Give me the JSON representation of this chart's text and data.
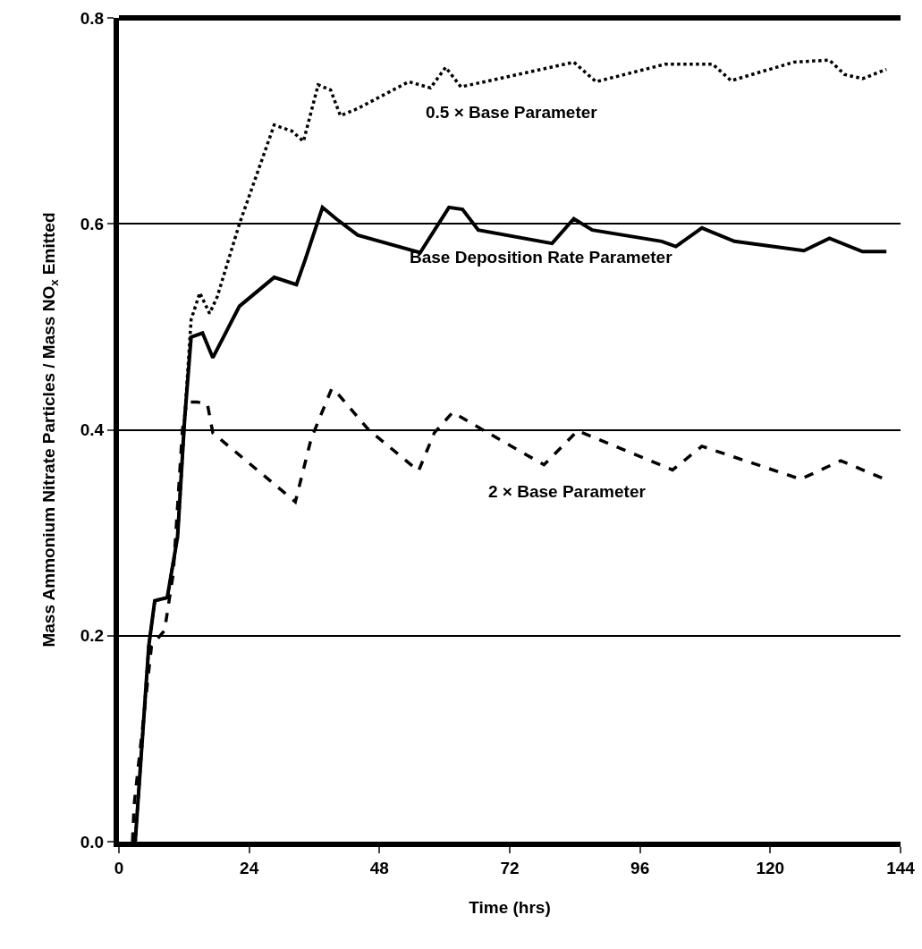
{
  "chart_data": {
    "type": "line",
    "xlabel": "Time (hrs)",
    "ylabel": "Mass Ammonium Nitrate Particles / Mass NO$_{x}$ Emitted",
    "xlim": [
      0,
      144
    ],
    "xticks": [
      0,
      24,
      48,
      72,
      96,
      120,
      144
    ],
    "ylim": [
      0,
      0.8
    ],
    "yticks": [
      {
        "value": 0,
        "label": "0.0"
      },
      0.2,
      0.4,
      0.6,
      {
        "value": 0.8,
        "label": "0.8"
      }
    ],
    "grid": "y",
    "legend": false,
    "marker": "none",
    "series": [
      {
        "name": "0.5 × Base Parameter",
        "color": "#000000",
        "line_style": "dotted",
        "x": [
          3,
          5.5,
          6.6,
          8.9,
          10.8,
          12.1,
          13.3,
          14.9,
          16.7,
          18.1,
          22.2,
          28.6,
          31.9,
          34,
          36.7,
          39,
          40.8,
          44,
          53.4,
          57.4,
          60.2,
          63,
          80.4,
          83.8,
          87.9,
          100.6,
          109.4,
          112.8,
          124.3,
          130.9,
          133.7,
          137,
          141.4
        ],
        "values": [
          0,
          0.19,
          0.234,
          0.237,
          0.296,
          0.41,
          0.507,
          0.533,
          0.513,
          0.529,
          0.6,
          0.696,
          0.69,
          0.68,
          0.735,
          0.73,
          0.705,
          0.712,
          0.738,
          0.732,
          0.752,
          0.733,
          0.753,
          0.757,
          0.738,
          0.755,
          0.755,
          0.739,
          0.757,
          0.759,
          0.745,
          0.741,
          0.75
        ]
      },
      {
        "name": "Base Deposition Rate Parameter",
        "color": "#000000",
        "line_style": "solid",
        "x": [
          3,
          5.5,
          6.6,
          8.9,
          10.8,
          12.1,
          13.3,
          15.4,
          17.3,
          22.2,
          28.6,
          32.7,
          34.3,
          37.5,
          40,
          44,
          55.5,
          60.8,
          63.3,
          66.2,
          79.8,
          83.8,
          87.2,
          100,
          102.6,
          107.4,
          113.4,
          126.2,
          130.9,
          137,
          141.4
        ],
        "values": [
          0,
          0.19,
          0.234,
          0.237,
          0.296,
          0.41,
          0.49,
          0.494,
          0.47,
          0.52,
          0.548,
          0.541,
          0.565,
          0.616,
          0.605,
          0.589,
          0.572,
          0.616,
          0.614,
          0.594,
          0.581,
          0.605,
          0.594,
          0.583,
          0.578,
          0.596,
          0.583,
          0.574,
          0.586,
          0.573,
          0.573
        ]
      },
      {
        "name": "2 × Base Parameter",
        "color": "#000000",
        "line_style": "dashed",
        "x": [
          2.5,
          2.8,
          6,
          8.4,
          10,
          11.7,
          12.5,
          14.4,
          16.3,
          17.3,
          32.5,
          35.4,
          39.2,
          40,
          46,
          55.2,
          58.1,
          61.5,
          67,
          78.3,
          84.5,
          102,
          107.4,
          125.6,
          133,
          141.1
        ],
        "values": [
          0,
          0.036,
          0.19,
          0.205,
          0.26,
          0.4,
          0.427,
          0.427,
          0.425,
          0.397,
          0.33,
          0.391,
          0.44,
          0.437,
          0.4,
          0.36,
          0.397,
          0.417,
          0.4,
          0.366,
          0.399,
          0.361,
          0.384,
          0.352,
          0.37,
          0.352
        ]
      }
    ]
  }
}
